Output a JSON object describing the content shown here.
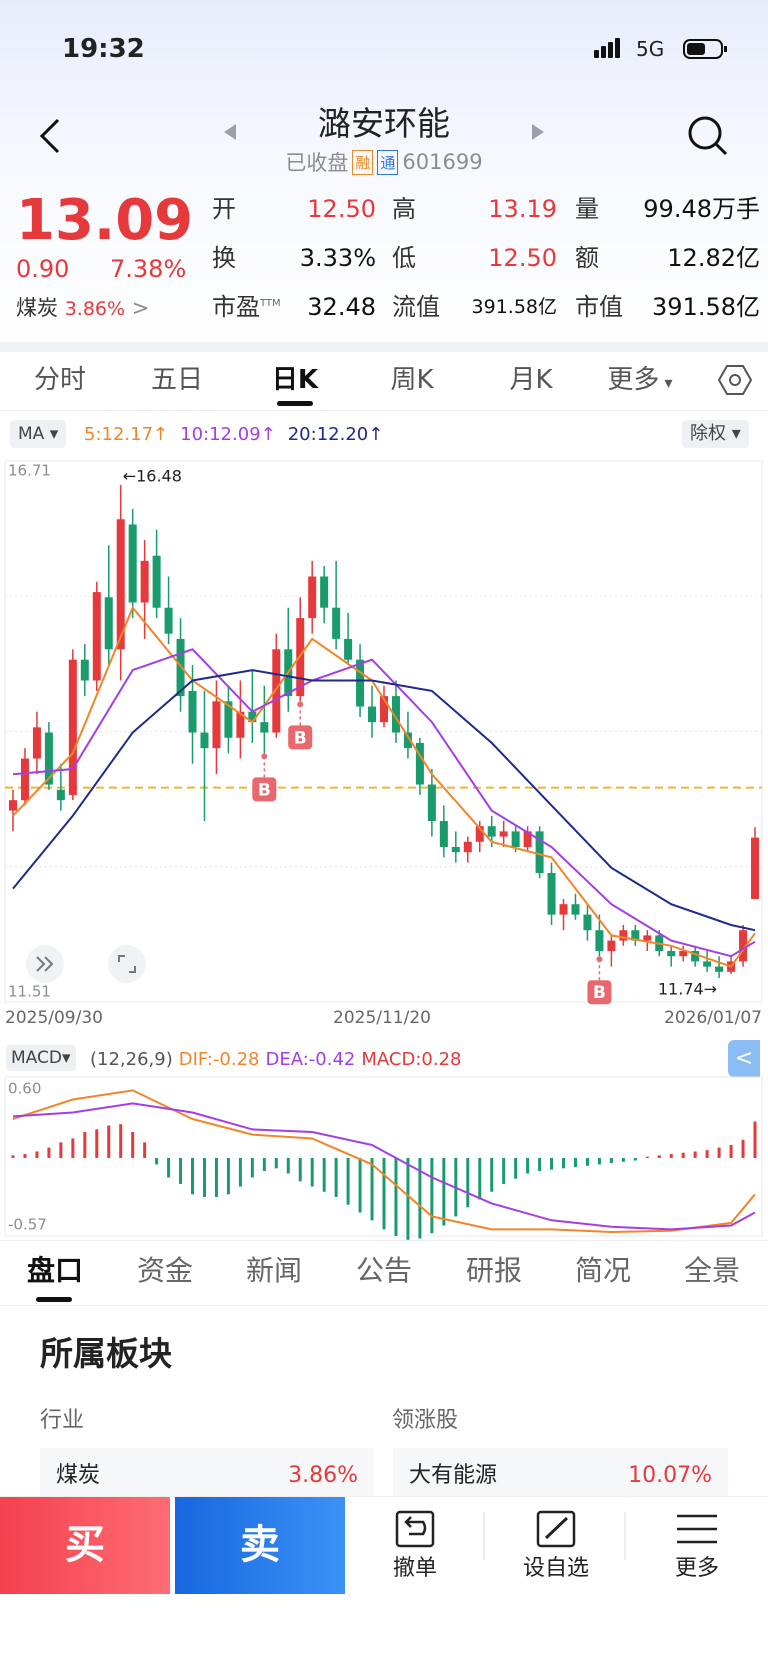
{
  "status_bar": {
    "time": "19:32",
    "network": "5G"
  },
  "header": {
    "title": "潞安环能",
    "status": "已收盘",
    "tags": [
      "融",
      "通"
    ],
    "code": "601699"
  },
  "quote": {
    "price": "13.09",
    "change": "0.90",
    "change_pct": "7.38%",
    "sector": "煤炭",
    "sector_pct": "3.86%",
    "stats": [
      {
        "label": "开",
        "value": "12.50"
      },
      {
        "label": "高",
        "value": "13.19"
      },
      {
        "label": "量",
        "value": "99.48万手"
      },
      {
        "label": "换",
        "value": "3.33%"
      },
      {
        "label": "低",
        "value": "12.50"
      },
      {
        "label": "额",
        "value": "12.82亿"
      },
      {
        "label": "市盈",
        "sup": "TTM",
        "value": "32.48"
      },
      {
        "label": "流值",
        "value": "391.58亿"
      },
      {
        "label": "市值",
        "value": "391.58亿"
      }
    ]
  },
  "period_tabs": [
    "分时",
    "五日",
    "日K",
    "周K",
    "月K",
    "更多"
  ],
  "ma_bar": {
    "selector": "MA",
    "right": "除权"
  },
  "chart_data": [
    {
      "type": "candlestick",
      "ylim": [
        11.51,
        16.71
      ],
      "yticks": [
        16.71,
        11.51
      ],
      "x_labels": [
        "2025/09/30",
        "2025/11/20",
        "2026/01/07"
      ],
      "up_color": "#e5393b",
      "down_color": "#1a9b6c",
      "ref_line": 13.57,
      "ohlc": [
        [
          13.35,
          13.55,
          13.15,
          13.45
        ],
        [
          13.45,
          13.95,
          13.4,
          13.85
        ],
        [
          13.85,
          14.3,
          13.7,
          14.15
        ],
        [
          14.1,
          14.2,
          13.55,
          13.6
        ],
        [
          13.55,
          13.8,
          13.35,
          13.45
        ],
        [
          13.5,
          14.9,
          13.45,
          14.8
        ],
        [
          14.8,
          14.95,
          14.45,
          14.6
        ],
        [
          14.6,
          15.55,
          14.5,
          15.45
        ],
        [
          15.4,
          15.9,
          14.75,
          14.9
        ],
        [
          14.9,
          16.48,
          14.6,
          16.15
        ],
        [
          16.1,
          16.25,
          15.2,
          15.35
        ],
        [
          15.35,
          15.95,
          15.0,
          15.75
        ],
        [
          15.8,
          16.05,
          15.2,
          15.3
        ],
        [
          15.3,
          15.6,
          14.95,
          15.05
        ],
        [
          15.0,
          15.2,
          14.3,
          14.45
        ],
        [
          14.5,
          14.75,
          13.8,
          14.1
        ],
        [
          14.1,
          14.5,
          13.25,
          13.95
        ],
        [
          13.95,
          14.6,
          13.7,
          14.4
        ],
        [
          14.4,
          14.55,
          13.9,
          14.05
        ],
        [
          14.05,
          14.6,
          13.85,
          14.3
        ],
        [
          14.3,
          14.7,
          14.0,
          14.2
        ],
        [
          14.2,
          14.55,
          13.9,
          14.1
        ],
        [
          14.1,
          15.05,
          14.05,
          14.9
        ],
        [
          14.9,
          15.3,
          14.3,
          14.45
        ],
        [
          14.45,
          15.4,
          14.4,
          15.2
        ],
        [
          15.2,
          15.75,
          15.05,
          15.6
        ],
        [
          15.6,
          15.7,
          15.15,
          15.3
        ],
        [
          15.3,
          15.75,
          14.9,
          15.0
        ],
        [
          15.0,
          15.25,
          14.75,
          14.8
        ],
        [
          14.8,
          14.95,
          14.25,
          14.35
        ],
        [
          14.35,
          14.55,
          14.05,
          14.2
        ],
        [
          14.2,
          14.55,
          14.15,
          14.45
        ],
        [
          14.45,
          14.6,
          14.0,
          14.1
        ],
        [
          14.1,
          14.3,
          13.85,
          13.95
        ],
        [
          14.0,
          14.05,
          13.5,
          13.6
        ],
        [
          13.6,
          13.75,
          13.1,
          13.25
        ],
        [
          13.25,
          13.4,
          12.9,
          13.0
        ],
        [
          13.0,
          13.15,
          12.85,
          12.95
        ],
        [
          12.95,
          13.1,
          12.85,
          13.05
        ],
        [
          13.05,
          13.25,
          12.95,
          13.2
        ],
        [
          13.2,
          13.3,
          13.0,
          13.1
        ],
        [
          13.1,
          13.25,
          13.0,
          13.15
        ],
        [
          13.15,
          13.2,
          12.95,
          13.0
        ],
        [
          13.0,
          13.2,
          12.95,
          13.15
        ],
        [
          13.15,
          13.2,
          12.7,
          12.75
        ],
        [
          12.75,
          12.85,
          12.25,
          12.35
        ],
        [
          12.35,
          12.5,
          12.2,
          12.45
        ],
        [
          12.45,
          12.55,
          12.3,
          12.35
        ],
        [
          12.35,
          12.45,
          12.1,
          12.2
        ],
        [
          12.2,
          12.35,
          11.95,
          12.0
        ],
        [
          12.0,
          12.15,
          11.85,
          12.1
        ],
        [
          12.1,
          12.25,
          12.05,
          12.2
        ],
        [
          12.2,
          12.25,
          12.05,
          12.1
        ],
        [
          12.1,
          12.2,
          12.0,
          12.15
        ],
        [
          12.15,
          12.2,
          11.95,
          12.0
        ],
        [
          12.0,
          12.05,
          11.85,
          11.95
        ],
        [
          11.95,
          12.05,
          11.9,
          12.0
        ],
        [
          12.0,
          12.05,
          11.85,
          11.9
        ],
        [
          11.9,
          12.0,
          11.8,
          11.85
        ],
        [
          11.85,
          11.95,
          11.74,
          11.8
        ],
        [
          11.8,
          11.95,
          11.78,
          11.9
        ],
        [
          11.9,
          12.25,
          11.85,
          12.2
        ],
        [
          12.5,
          13.19,
          12.5,
          13.09
        ]
      ],
      "ma_x": [
        0,
        5,
        10,
        15,
        20,
        25,
        30,
        35,
        40,
        45,
        50,
        55,
        60,
        62
      ],
      "series": [
        {
          "label": "5:12.17↑",
          "color": "#f0862a",
          "values": [
            13.3,
            13.9,
            15.3,
            14.6,
            14.2,
            15.0,
            14.6,
            13.7,
            13.05,
            12.9,
            12.15,
            12.05,
            11.85,
            12.17
          ]
        },
        {
          "label": "10:12.09↑",
          "color": "#a33ee6",
          "values": [
            13.7,
            13.75,
            14.7,
            14.9,
            14.3,
            14.6,
            14.8,
            14.2,
            13.35,
            13.0,
            12.45,
            12.1,
            11.95,
            12.09
          ]
        },
        {
          "label": "20:12.20↑",
          "color": "#1f2a8c",
          "values": [
            12.6,
            13.3,
            14.1,
            14.6,
            14.7,
            14.6,
            14.6,
            14.5,
            14.0,
            13.4,
            12.8,
            12.45,
            12.25,
            12.2
          ]
        }
      ],
      "annotations": [
        {
          "index": 9,
          "at": "high",
          "text": "←16.48"
        },
        {
          "index": 59,
          "at": "low",
          "text": "11.74→"
        }
      ],
      "markers": [
        {
          "index": 21,
          "label": "B"
        },
        {
          "index": 24,
          "label": "B"
        },
        {
          "index": 49,
          "label": "B"
        }
      ]
    },
    {
      "type": "macd",
      "selector": "MACD",
      "params": "(12,26,9)",
      "ylim": [
        -0.57,
        0.6
      ],
      "yticks": [
        {
          "value": 0.6,
          "label": "0.60"
        },
        -0.57
      ],
      "hist": {
        "label": "MACD:0.28",
        "values": [
          0.02,
          0.03,
          0.05,
          0.08,
          0.12,
          0.15,
          0.2,
          0.22,
          0.25,
          0.26,
          0.2,
          0.12,
          -0.05,
          -0.15,
          -0.2,
          -0.28,
          -0.3,
          -0.3,
          -0.28,
          -0.22,
          -0.15,
          -0.1,
          -0.08,
          -0.12,
          -0.18,
          -0.22,
          -0.26,
          -0.3,
          -0.36,
          -0.42,
          -0.48,
          -0.55,
          -0.6,
          -0.63,
          -0.62,
          -0.58,
          -0.52,
          -0.45,
          -0.38,
          -0.32,
          -0.26,
          -0.2,
          -0.16,
          -0.12,
          -0.1,
          -0.09,
          -0.08,
          -0.07,
          -0.06,
          -0.05,
          -0.04,
          -0.03,
          -0.02,
          0.01,
          0.02,
          0.03,
          0.04,
          0.05,
          0.06,
          0.08,
          0.1,
          0.14,
          0.28
        ]
      },
      "x": [
        0,
        5,
        10,
        15,
        20,
        25,
        30,
        35,
        40,
        45,
        50,
        55,
        60,
        62
      ],
      "series": [
        {
          "label": "DIF:-0.28",
          "color": "#f0862a",
          "values": [
            0.3,
            0.45,
            0.52,
            0.3,
            0.18,
            0.15,
            -0.05,
            -0.45,
            -0.55,
            -0.55,
            -0.57,
            -0.56,
            -0.5,
            -0.28
          ]
        },
        {
          "label": "DEA:-0.42",
          "color": "#a33ee6",
          "values": [
            0.32,
            0.35,
            0.42,
            0.35,
            0.22,
            0.2,
            0.1,
            -0.15,
            -0.35,
            -0.48,
            -0.53,
            -0.55,
            -0.52,
            -0.42
          ]
        }
      ]
    }
  ],
  "info_tabs": [
    "盘口",
    "资金",
    "新闻",
    "公告",
    "研报",
    "简况",
    "全景"
  ],
  "section": {
    "title": "所属板块",
    "industry_label": "行业",
    "industry": {
      "name": "煤炭",
      "pct": "3.86%"
    },
    "leader_label": "领涨股",
    "leader": {
      "name": "大有能源",
      "pct": "10.07%"
    }
  },
  "bottom_bar": {
    "buy": "买",
    "sell": "卖",
    "actions": [
      "撤单",
      "设自选",
      "更多"
    ]
  }
}
